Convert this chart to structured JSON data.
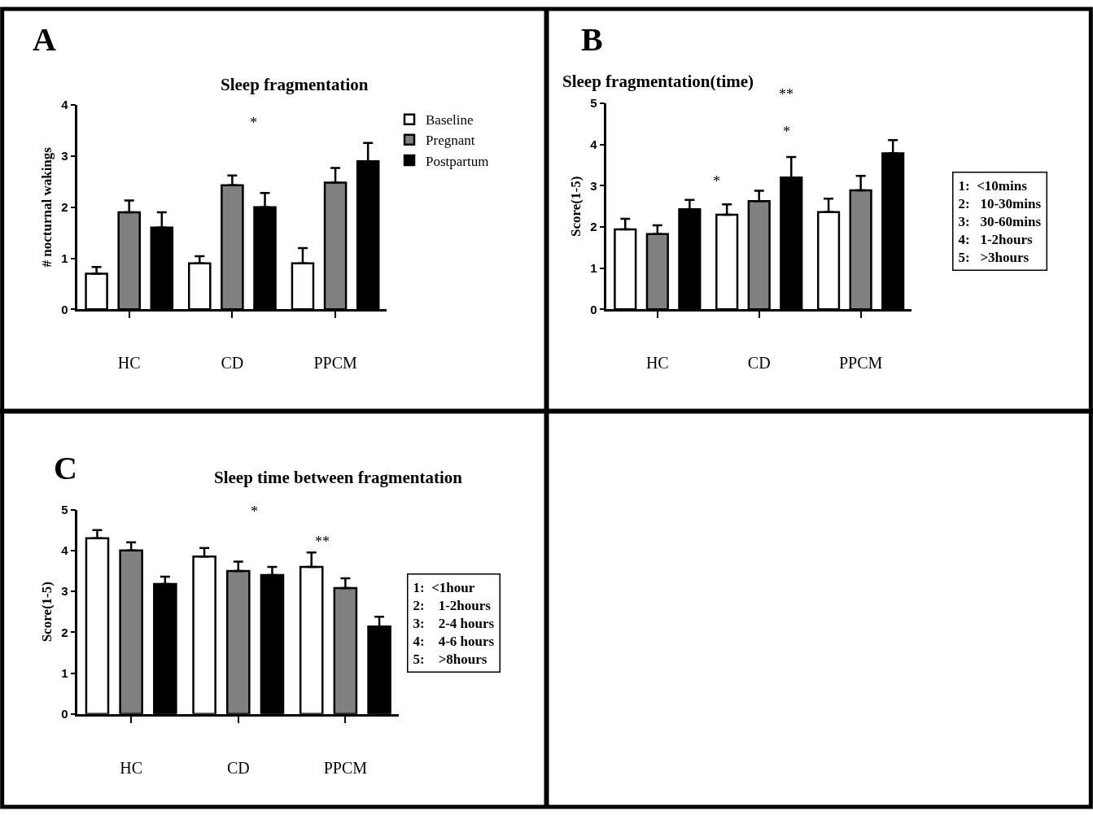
{
  "chart_data": [
    {
      "type": "bar",
      "title": "Sleep fragmentation",
      "ylabel": "# nocturnal wakings",
      "categories": [
        "HC",
        "CD",
        "PPCM"
      ],
      "ylim": [
        0,
        4
      ],
      "yticks": [
        0,
        1,
        2,
        3,
        4
      ],
      "legend": "right",
      "series": [
        {
          "name": "Baseline",
          "color": "#ffffff",
          "values": [
            0.7,
            0.9,
            0.9
          ],
          "errors": [
            [
              0.7,
              0.83
            ],
            [
              0.9,
              1.04
            ],
            [
              0.9,
              1.2
            ]
          ]
        },
        {
          "name": "Pregnant",
          "color": "#808080",
          "values": [
            1.9,
            2.43,
            2.48
          ],
          "errors": [
            [
              1.9,
              2.13
            ],
            [
              2.43,
              2.62
            ],
            [
              2.48,
              2.77
            ]
          ]
        },
        {
          "name": "Postpartum",
          "color": "#000000",
          "values": [
            1.6,
            2.0,
            2.9
          ],
          "errors": [
            [
              1.6,
              1.9
            ],
            [
              2.0,
              2.28
            ],
            [
              2.9,
              3.26
            ]
          ]
        }
      ],
      "annotations": [
        "A",
        "*"
      ]
    },
    {
      "type": "bar",
      "title": "Sleep fragmentation(time)",
      "ylabel": "Score(1-5)",
      "categories": [
        "HC",
        "CD",
        "PPCM"
      ],
      "ylim": [
        0,
        5
      ],
      "yticks": [
        0,
        1,
        2,
        3,
        4,
        5
      ],
      "legend": false,
      "series": [
        {
          "color": "#ffffff",
          "values": [
            1.94,
            2.3,
            2.36
          ],
          "errors": [
            [
              1.94,
              2.2
            ],
            [
              2.3,
              2.55
            ],
            [
              2.36,
              2.69
            ]
          ]
        },
        {
          "color": "#808080",
          "values": [
            1.83,
            2.63,
            2.89
          ],
          "errors": [
            [
              1.83,
              2.04
            ],
            [
              2.63,
              2.88
            ],
            [
              2.89,
              3.24
            ]
          ]
        },
        {
          "color": "#000000",
          "values": [
            2.43,
            3.2,
            3.79
          ],
          "errors": [
            [
              2.43,
              2.66
            ],
            [
              3.2,
              3.7
            ],
            [
              3.79,
              4.11
            ]
          ]
        }
      ],
      "annotations": [
        "B",
        "**",
        "*",
        "*",
        "1:  <10mins\n2:   10-30mins\n3:   30-60mins\n4:   1-2hours\n5:   >3hours"
      ]
    },
    {
      "type": "bar",
      "title": "Sleep time between fragmentation",
      "ylabel": "Score(1-5)",
      "categories": [
        "HC",
        "CD",
        "PPCM"
      ],
      "ylim": [
        0,
        5
      ],
      "yticks": [
        0,
        1,
        2,
        3,
        4,
        5
      ],
      "legend": false,
      "series": [
        {
          "color": "#ffffff",
          "values": [
            4.3,
            3.85,
            3.6
          ],
          "errors": [
            [
              4.3,
              4.5
            ],
            [
              3.85,
              4.06
            ],
            [
              3.6,
              3.95
            ]
          ]
        },
        {
          "color": "#808080",
          "values": [
            4.0,
            3.5,
            3.08
          ],
          "errors": [
            [
              4.0,
              4.2
            ],
            [
              3.5,
              3.73
            ],
            [
              3.08,
              3.32
            ]
          ]
        },
        {
          "color": "#000000",
          "values": [
            3.18,
            3.4,
            2.14
          ],
          "errors": [
            [
              3.18,
              3.36
            ],
            [
              3.4,
              3.6
            ],
            [
              2.14,
              2.38
            ]
          ]
        }
      ],
      "annotations": [
        "C",
        "*",
        "**",
        "1:  <1hour\n2:    1-2hours\n3:    2-4 hours\n4:    4-6 hours\n5:    >8hours"
      ]
    }
  ]
}
